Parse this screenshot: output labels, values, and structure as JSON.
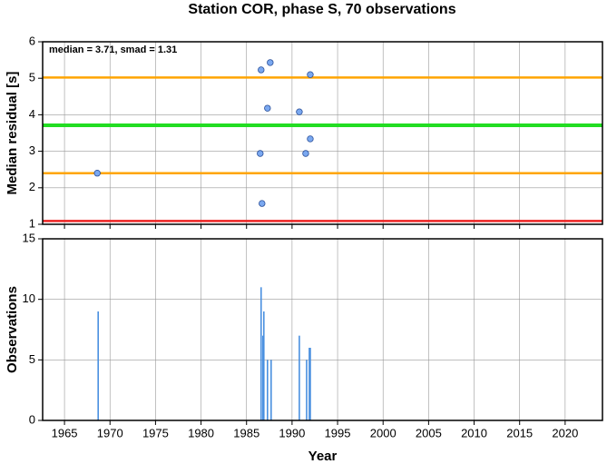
{
  "chart_data": [
    {
      "type": "scatter",
      "title": "Station COR, phase S, 70 observations",
      "ylabel": "Median residual [s]",
      "annotation": "median = 3.71, smad = 1.31",
      "x": [
        1968.6,
        1986.6,
        1987.6,
        1987.3,
        1986.5,
        1986.7,
        1990.8,
        1992.0,
        1992.0,
        1991.5
      ],
      "values": [
        2.4,
        5.23,
        5.43,
        4.18,
        2.94,
        1.57,
        4.08,
        5.1,
        3.34,
        2.94
      ],
      "color": "#7aa8f0",
      "hlines": [
        {
          "value": 5.02,
          "color": "#ffa500"
        },
        {
          "value": 3.71,
          "color": "#22dd22"
        },
        {
          "value": 2.4,
          "color": "#ffa500"
        },
        {
          "value": 1.09,
          "color": "#ee2222"
        }
      ],
      "xlim": [
        1962.6,
        2024.1
      ],
      "xticks": [
        1965,
        1970,
        1975,
        1980,
        1985,
        1990,
        1995,
        2000,
        2005,
        2010,
        2015,
        2020
      ],
      "ylim": [
        1,
        6
      ],
      "yticks": [
        1,
        2,
        3,
        4,
        5,
        6
      ],
      "grid": true
    },
    {
      "type": "bar",
      "xlabel": "Year",
      "ylabel": "Observations",
      "x": [
        1968.7,
        1986.6,
        1986.8,
        1986.9,
        1987.3,
        1987.7,
        1990.8,
        1991.6,
        1991.9,
        1992.0
      ],
      "values": [
        9,
        11,
        7,
        9,
        5,
        5,
        7,
        5,
        6,
        6
      ],
      "color": "#4a90e0",
      "xlim": [
        1962.6,
        2024.1
      ],
      "xticks": [
        1965,
        1970,
        1975,
        1980,
        1985,
        1990,
        1995,
        2000,
        2005,
        2010,
        2015,
        2020
      ],
      "ylim": [
        0,
        15
      ],
      "yticks": [
        0,
        5,
        10,
        15
      ],
      "grid": true
    }
  ]
}
